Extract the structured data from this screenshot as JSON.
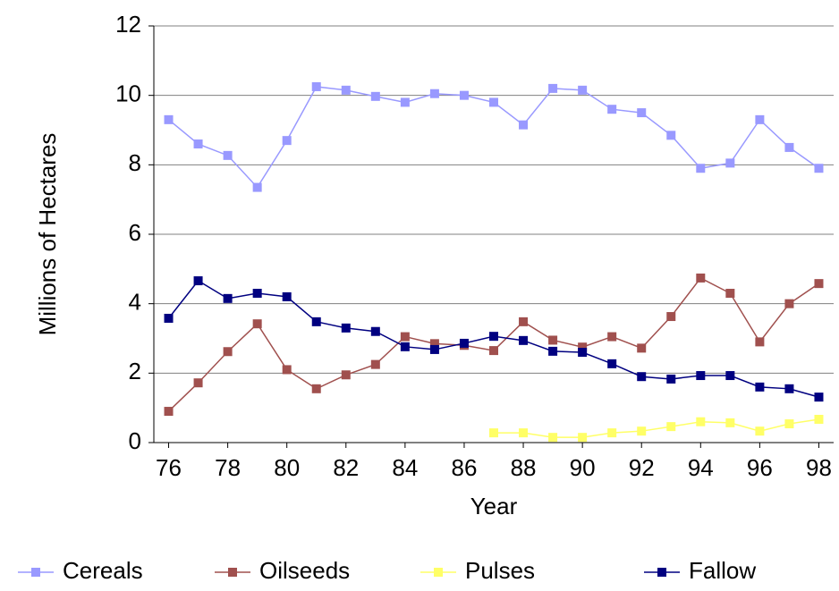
{
  "chart_data": {
    "type": "line",
    "xlabel": "Year",
    "ylabel": "Millions of Hectares",
    "x": [
      76,
      77,
      78,
      79,
      80,
      81,
      82,
      83,
      84,
      85,
      86,
      87,
      88,
      89,
      90,
      91,
      92,
      93,
      94,
      95,
      96,
      97,
      98
    ],
    "xlim": [
      75.5,
      98.5
    ],
    "xticks": [
      76,
      78,
      80,
      82,
      84,
      86,
      88,
      90,
      92,
      94,
      96,
      98
    ],
    "ylim": [
      0,
      12
    ],
    "yticks": [
      0,
      2,
      4,
      6,
      8,
      10,
      12
    ],
    "grid": true,
    "legend": "bottom",
    "series": [
      {
        "name": "Cereals",
        "color": "#9999ff",
        "values": [
          9.3,
          8.6,
          8.27,
          7.35,
          8.7,
          10.25,
          10.15,
          9.97,
          9.8,
          10.05,
          10.0,
          9.8,
          9.15,
          10.2,
          10.15,
          9.6,
          9.5,
          8.85,
          7.9,
          8.05,
          9.3,
          8.5,
          7.9
        ]
      },
      {
        "name": "Oilseeds",
        "color": "#a0504e",
        "values": [
          0.9,
          1.72,
          2.62,
          3.42,
          2.1,
          1.55,
          1.95,
          2.25,
          3.05,
          2.85,
          2.8,
          2.65,
          3.48,
          2.95,
          2.75,
          3.05,
          2.72,
          3.63,
          4.74,
          4.3,
          2.9,
          4.0,
          4.58
        ]
      },
      {
        "name": "Pulses",
        "color": "#ffff66",
        "values": [
          null,
          null,
          null,
          null,
          null,
          null,
          null,
          null,
          null,
          null,
          null,
          0.28,
          0.28,
          0.15,
          0.15,
          0.28,
          0.33,
          0.46,
          0.6,
          0.57,
          0.33,
          0.54,
          0.67
        ]
      },
      {
        "name": "Fallow",
        "color": "#000080",
        "values": [
          3.58,
          4.66,
          4.15,
          4.3,
          4.2,
          3.48,
          3.3,
          3.2,
          2.76,
          2.68,
          2.86,
          3.06,
          2.94,
          2.63,
          2.6,
          2.27,
          1.9,
          1.83,
          1.93,
          1.93,
          1.6,
          1.55,
          1.31
        ]
      }
    ]
  }
}
